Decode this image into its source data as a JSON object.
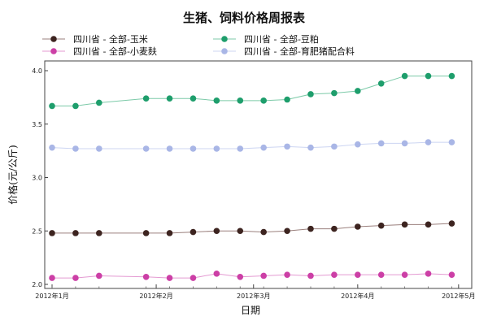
{
  "chart_data": {
    "type": "line",
    "title": "生猪、饲料价格周报表",
    "xlabel": "日期",
    "ylabel": "价格(元/公斤)",
    "ylim": [
      2.0,
      4.0
    ],
    "yticks": [
      "2.0",
      "2.5",
      "3.0",
      "3.5",
      "4.0"
    ],
    "xticks": [
      {
        "label": "2012年1月",
        "week": 0
      },
      {
        "label": "2012年2月",
        "week": 4.43
      },
      {
        "label": "2012年3月",
        "week": 8.57
      },
      {
        "label": "2012年4月",
        "week": 13
      },
      {
        "label": "2012年5月",
        "week": 17.29
      }
    ],
    "grid": false,
    "legend_position": "top",
    "x": [
      "2012-01-04",
      "2012-01-11",
      "2012-01-18",
      "2012-02-01",
      "2012-02-08",
      "2012-02-15",
      "2012-02-22",
      "2012-02-29",
      "2012-03-07",
      "2012-03-14",
      "2012-03-21",
      "2012-03-28",
      "2012-04-04",
      "2012-04-11",
      "2012-04-18",
      "2012-04-25",
      "2012-05-02"
    ],
    "x_week": [
      0,
      1,
      2,
      4,
      5,
      6,
      7,
      8,
      9,
      10,
      11,
      12,
      13,
      14,
      15,
      16,
      17
    ],
    "series": [
      {
        "name": "四川省 - 全部-玉米",
        "color": "#3d2420",
        "line_color": "#9a7f7c",
        "values": [
          2.48,
          2.48,
          2.48,
          2.48,
          2.48,
          2.49,
          2.5,
          2.5,
          2.49,
          2.5,
          2.52,
          2.52,
          2.54,
          2.55,
          2.56,
          2.56,
          2.57
        ]
      },
      {
        "name": "四川省 - 全部-豆粕",
        "color": "#1e9e6c",
        "line_color": "#7ccaa8",
        "values": [
          3.67,
          3.67,
          3.7,
          3.74,
          3.74,
          3.74,
          3.72,
          3.72,
          3.72,
          3.73,
          3.78,
          3.79,
          3.81,
          3.88,
          3.95,
          3.95,
          3.95
        ]
      },
      {
        "name": "四川省 - 全部-小麦麸",
        "color": "#cc3fa6",
        "line_color": "#e49ad2",
        "values": [
          2.06,
          2.06,
          2.08,
          2.07,
          2.06,
          2.06,
          2.1,
          2.07,
          2.08,
          2.09,
          2.08,
          2.09,
          2.09,
          2.09,
          2.09,
          2.1,
          2.09
        ]
      },
      {
        "name": "四川省 - 全部-育肥猪配合料",
        "color": "#a9b6e6",
        "line_color": "#ccd5f2",
        "values": [
          3.28,
          3.27,
          3.27,
          3.27,
          3.27,
          3.27,
          3.27,
          3.27,
          3.28,
          3.29,
          3.28,
          3.29,
          3.31,
          3.32,
          3.32,
          3.33,
          3.33
        ]
      }
    ]
  }
}
